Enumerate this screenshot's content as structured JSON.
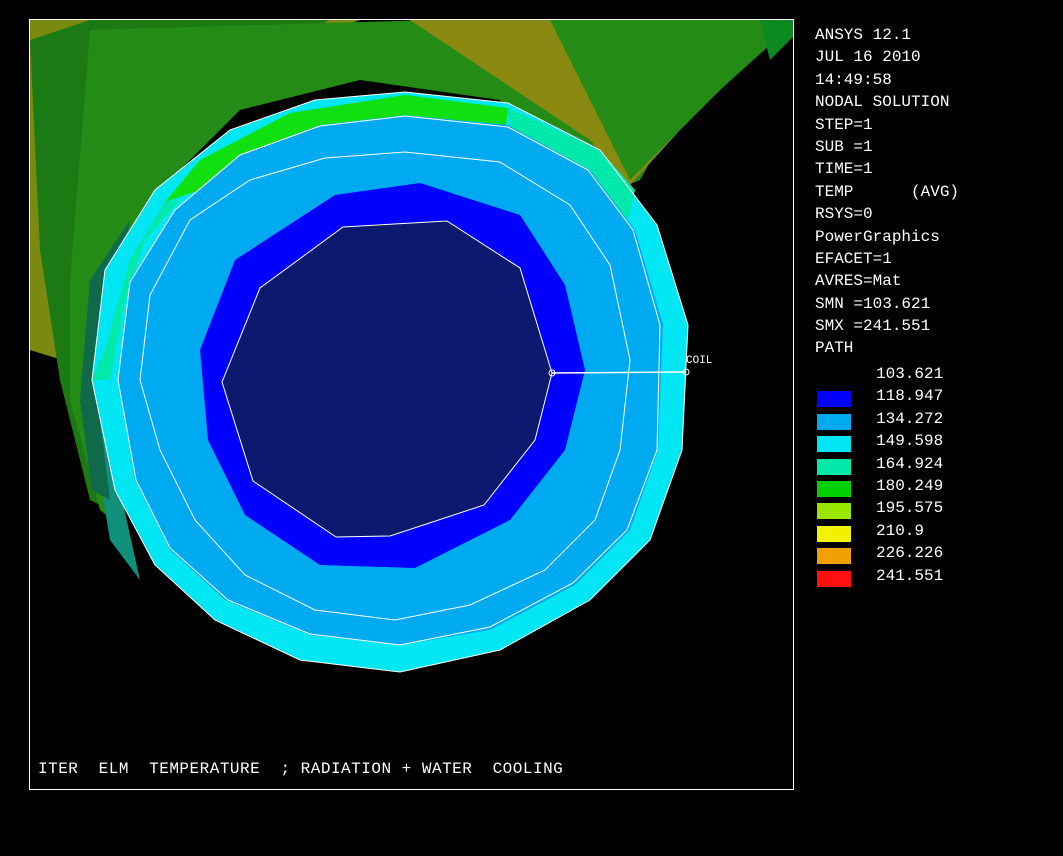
{
  "info_lines": [
    "ANSYS 12.1",
    "JUL 16 2010",
    "14:49:58",
    "NODAL SOLUTION",
    "STEP=1",
    "SUB =1",
    "TIME=1",
    "TEMP      (AVG)",
    "RSYS=0",
    "PowerGraphics",
    "EFACET=1",
    "AVRES=Mat",
    "SMN =103.621",
    "SMX =241.551",
    "PATH"
  ],
  "legend": {
    "values": [
      "103.621",
      "118.947",
      "134.272",
      "149.598",
      "164.924",
      "180.249",
      "195.575",
      "210.9",
      "226.226",
      "241.551"
    ],
    "colors": [
      "#0000ff",
      "#00aaf0",
      "#00e6f2",
      "#00e8aa",
      "#00d000",
      "#99e600",
      "#f2f200",
      "#f0a000",
      "#ff1010"
    ]
  },
  "path_label": "COIL",
  "plot_title": "ITER  ELM  TEMPERATURE  ; RADIATION + WATER  COOLING"
}
